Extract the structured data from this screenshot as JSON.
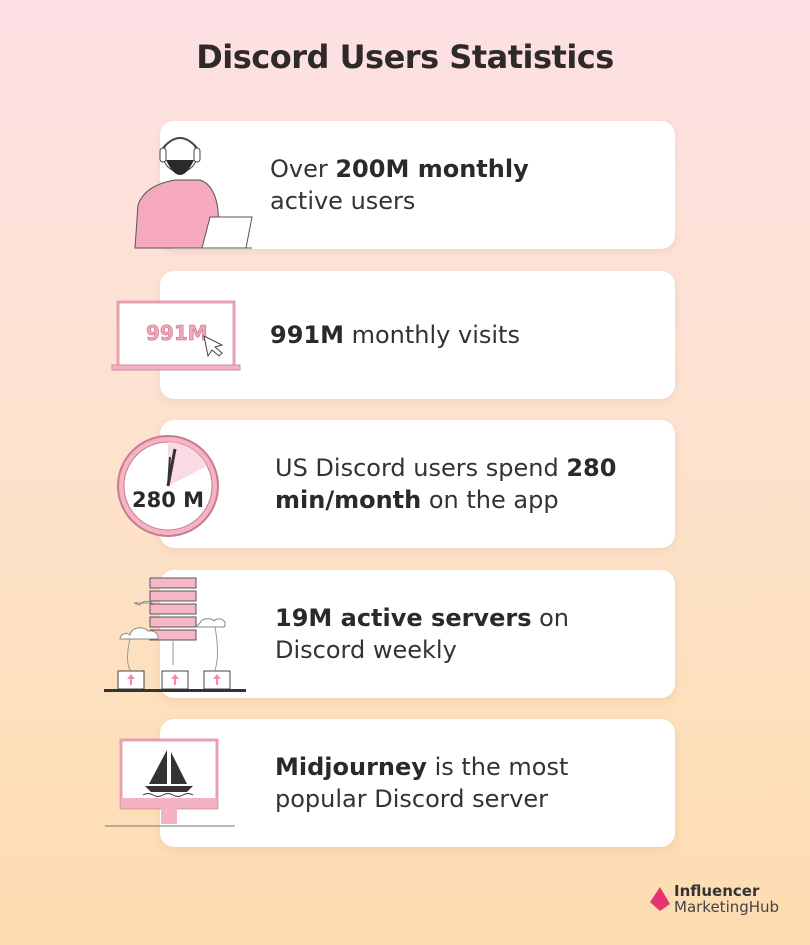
{
  "title": "Discord Users Statistics",
  "cards": [
    {
      "icon": "person-laptop-icon",
      "segments": [
        {
          "text": "Over "
        },
        {
          "text": "200M monthly",
          "bold": true
        },
        {
          "text": " active users"
        }
      ]
    },
    {
      "icon": "laptop-cursor-icon",
      "icon_text": "991M",
      "segments": [
        {
          "text": "991M",
          "bold": true
        },
        {
          "text": " monthly visits"
        }
      ]
    },
    {
      "icon": "clock-icon",
      "icon_text": "280 M",
      "segments": [
        {
          "text": "US Discord users spend "
        },
        {
          "text": "280 min/month",
          "bold": true
        },
        {
          "text": " on the app"
        }
      ]
    },
    {
      "icon": "servers-network-icon",
      "segments": [
        {
          "text": "19M active servers",
          "bold": true
        },
        {
          "text": " on Discord weekly"
        }
      ]
    },
    {
      "icon": "sailboat-monitor-icon",
      "segments": [
        {
          "text": "Midjourney",
          "bold": true
        },
        {
          "text": " is the most popular Discord server"
        }
      ]
    }
  ],
  "logo": {
    "line1": "Influencer",
    "line2": "MarketingHub"
  },
  "colors": {
    "accent_pink": "#f4a5b8",
    "brand": "#e8336e",
    "text": "#2b2b2b"
  }
}
